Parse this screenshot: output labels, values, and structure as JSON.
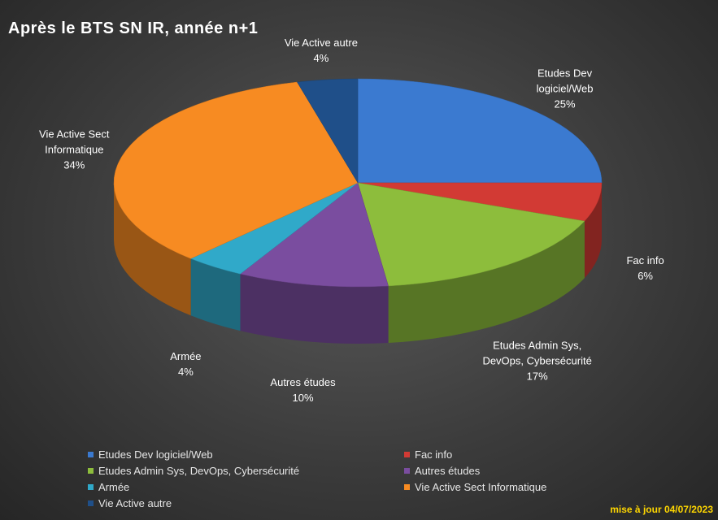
{
  "chart_data": {
    "type": "pie",
    "title": "Après le BTS SN IR, année n+1",
    "categories": [
      "Etudes Dev logiciel/Web",
      "Fac info",
      "Etudes Admin Sys, DevOps, Cybersécurité",
      "Autres études",
      "Armée",
      "Vie Active Sect Informatique",
      "Vie Active autre"
    ],
    "values": [
      25,
      6,
      17,
      10,
      4,
      34,
      4
    ],
    "value_labels": [
      "25%",
      "6%",
      "17%",
      "10%",
      "4%",
      "34%",
      "4%"
    ],
    "colors": [
      "#3b7ad0",
      "#d23a34",
      "#8dbd3c",
      "#7a4d9f",
      "#30a9c9",
      "#f78b22",
      "#1f4f89"
    ],
    "legend": "bottom",
    "update_note": "mise à jour 04/07/2023"
  }
}
